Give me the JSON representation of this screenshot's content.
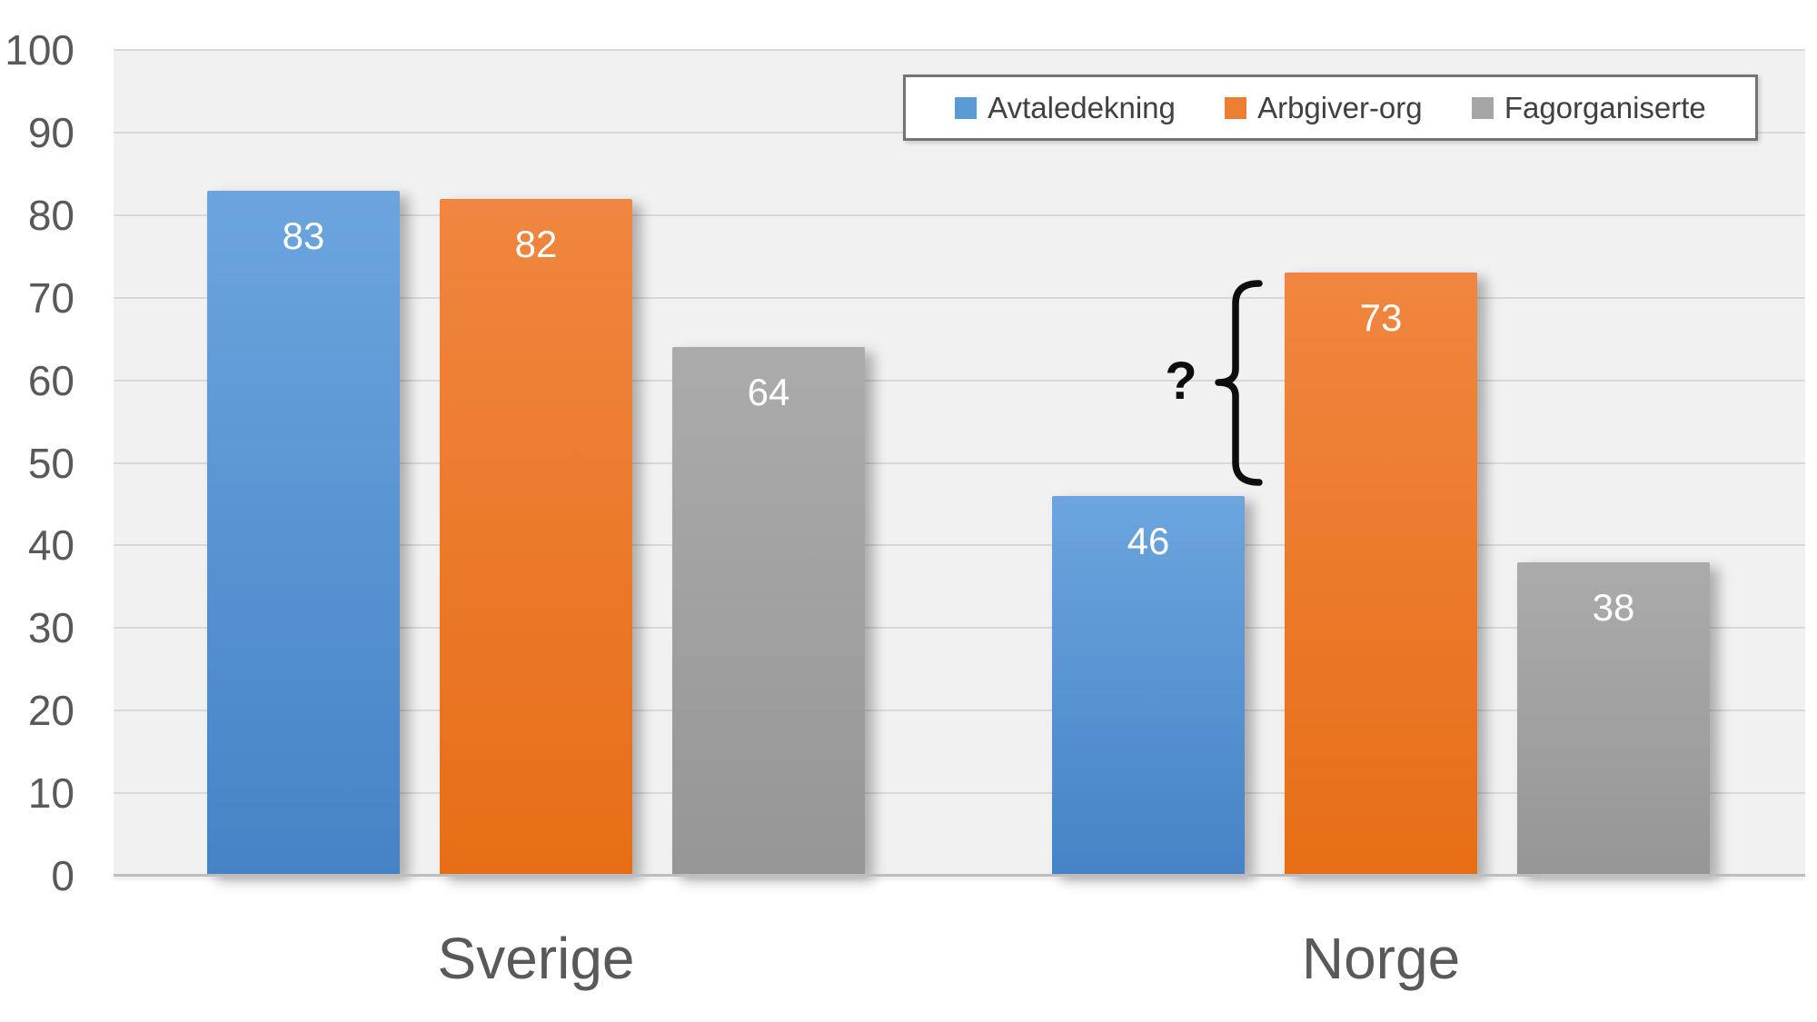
{
  "chart_data": {
    "type": "bar",
    "title": "",
    "categories": [
      "Sverige",
      "Norge"
    ],
    "series": [
      {
        "name": "Avtaledekning",
        "color": "#5B9BD5",
        "gradient_top": "#6CA5DE",
        "gradient_bottom": "#4583C6",
        "values": [
          83,
          46
        ]
      },
      {
        "name": "Arbgiver-org",
        "color": "#ED7D31",
        "gradient_top": "#F08640",
        "gradient_bottom": "#E76E16",
        "values": [
          82,
          73
        ]
      },
      {
        "name": "Fagorganiserte",
        "color": "#A5A5A5",
        "gradient_top": "#ABABAB",
        "gradient_bottom": "#969696",
        "values": [
          64,
          38
        ]
      }
    ],
    "xlabel": "",
    "ylabel": "",
    "ylim": [
      0,
      100
    ],
    "yticks": [
      0,
      10,
      20,
      30,
      40,
      50,
      60,
      70,
      80,
      90,
      100
    ],
    "grid": true,
    "legend_position": "top-right",
    "annotation": {
      "text": "?"
    }
  },
  "colors": {
    "plot_background": "#f1f1f1",
    "gridline": "#d9d9d9",
    "axis_line": "#bdbdbd",
    "tick_text": "#595959",
    "category_text": "#595959",
    "bar_value_text": "#ffffff",
    "legend_border": "#747474",
    "legend_text": "#404040",
    "annotation": "#0d0d0d"
  }
}
